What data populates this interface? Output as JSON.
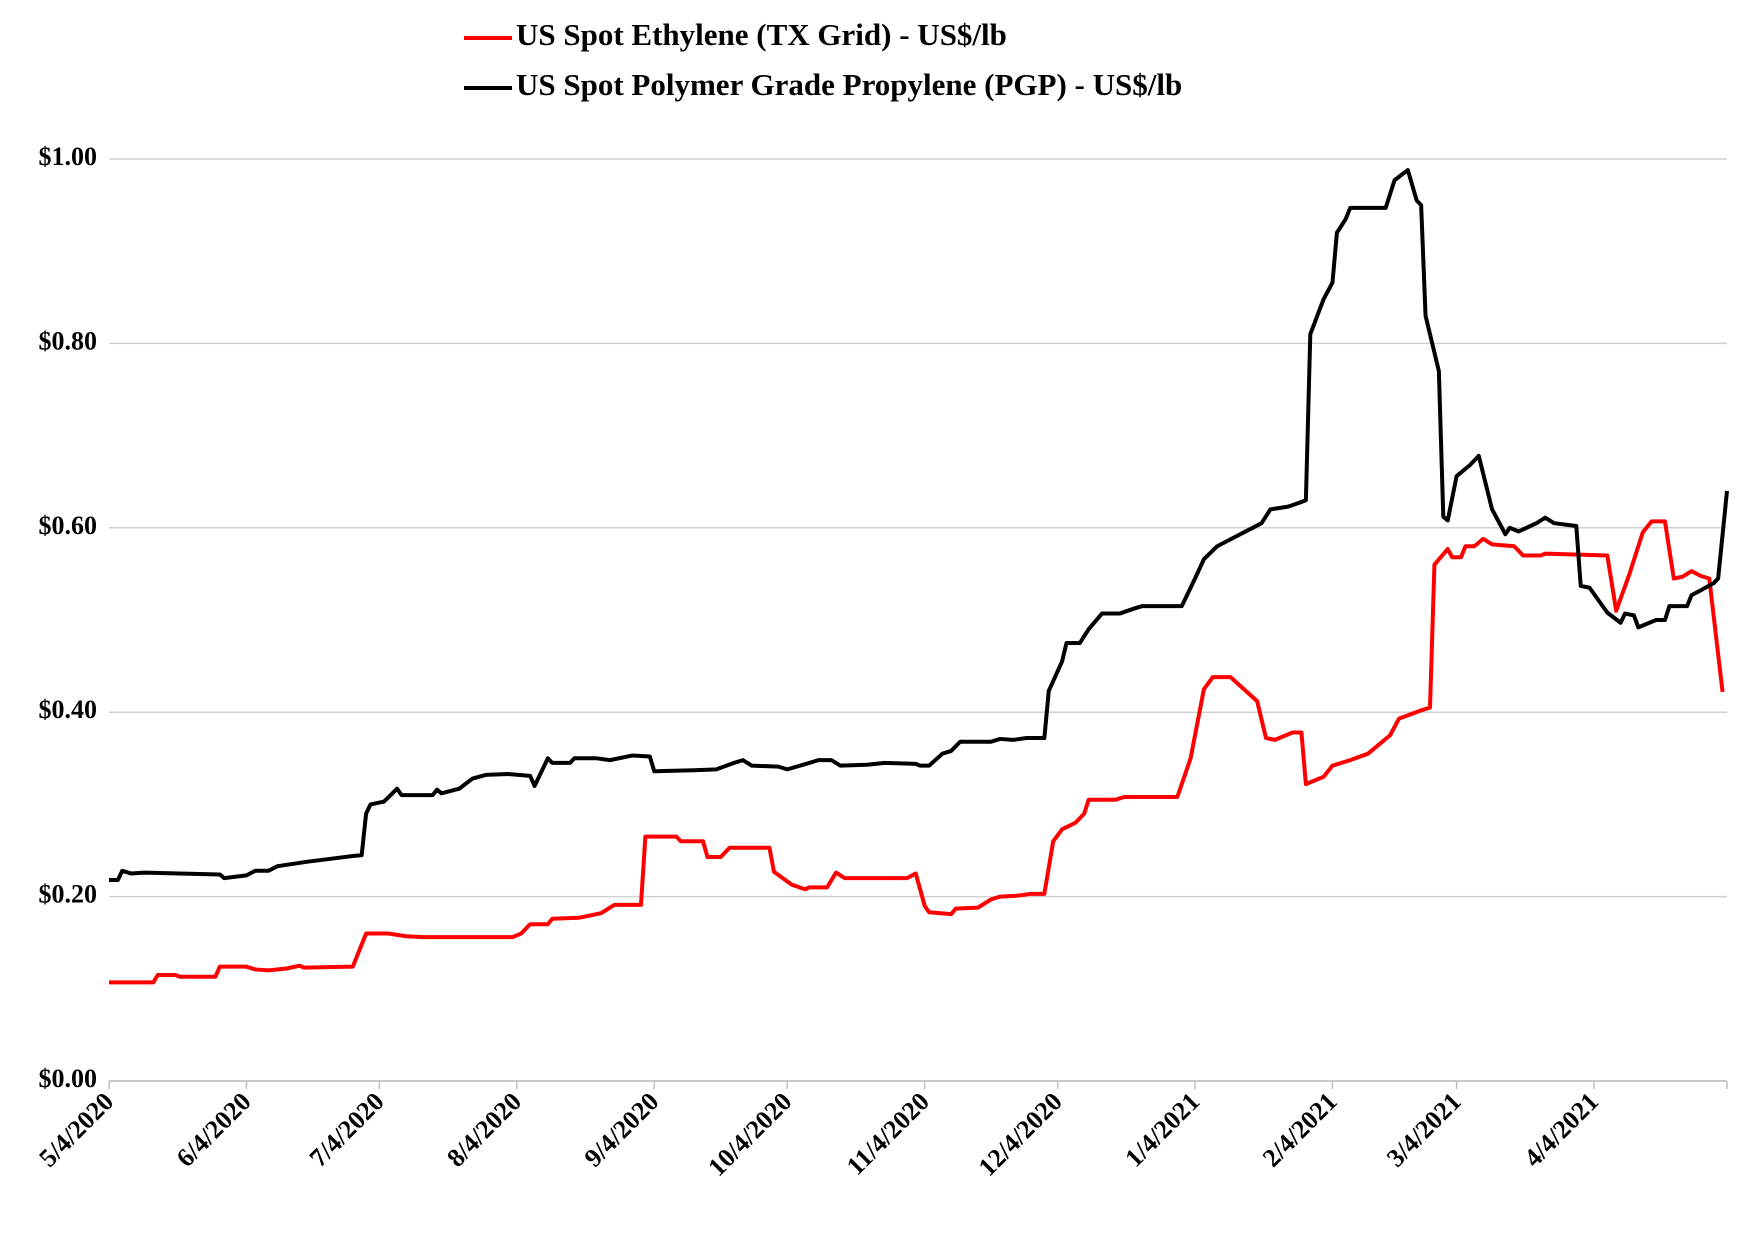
{
  "chart_data": {
    "type": "line",
    "series": [
      {
        "name": "US Spot Ethylene (TX Grid) - US$/lb",
        "color": "#ff0000",
        "x": [
          "2020-05-04",
          "2020-05-14",
          "2020-05-15",
          "2020-05-19",
          "2020-05-20",
          "2020-05-28",
          "2020-05-29",
          "2020-06-04",
          "2020-06-06",
          "2020-06-09",
          "2020-06-13",
          "2020-06-16",
          "2020-06-17",
          "2020-06-28",
          "2020-06-30",
          "2020-07-01",
          "2020-07-06",
          "2020-07-10",
          "2020-07-14",
          "2020-08-03",
          "2020-08-05",
          "2020-08-07",
          "2020-08-11",
          "2020-08-12",
          "2020-08-18",
          "2020-08-23",
          "2020-08-26",
          "2020-09-01",
          "2020-09-02",
          "2020-09-09",
          "2020-09-10",
          "2020-09-15",
          "2020-09-16",
          "2020-09-19",
          "2020-09-21",
          "2020-09-30",
          "2020-10-01",
          "2020-10-05",
          "2020-10-08",
          "2020-10-09",
          "2020-10-13",
          "2020-10-15",
          "2020-10-17",
          "2020-10-31",
          "2020-11-02",
          "2020-11-04",
          "2020-11-05",
          "2020-11-10",
          "2020-11-11",
          "2020-11-16",
          "2020-11-19",
          "2020-11-21",
          "2020-11-25",
          "2020-11-28",
          "2020-12-01",
          "2020-12-03",
          "2020-12-05",
          "2020-12-08",
          "2020-12-10",
          "2020-12-11",
          "2020-12-17",
          "2020-12-19",
          "2020-12-31",
          "2021-01-03",
          "2021-01-06",
          "2021-01-08",
          "2021-01-12",
          "2021-01-15",
          "2021-01-18",
          "2021-01-20",
          "2021-01-22",
          "2021-01-26",
          "2021-01-28",
          "2021-01-29",
          "2021-02-02",
          "2021-02-04",
          "2021-02-08",
          "2021-02-12",
          "2021-02-17",
          "2021-02-19",
          "2021-02-24",
          "2021-02-26",
          "2021-02-27",
          "2021-03-02",
          "2021-03-03",
          "2021-03-05",
          "2021-03-06",
          "2021-03-08",
          "2021-03-10",
          "2021-03-12",
          "2021-03-17",
          "2021-03-19",
          "2021-03-23",
          "2021-03-24",
          "2021-04-07",
          "2021-04-09",
          "2021-04-12",
          "2021-04-15",
          "2021-04-17",
          "2021-04-20",
          "2021-04-22",
          "2021-04-24",
          "2021-04-26",
          "2021-04-28",
          "2021-04-30",
          "2021-05-03"
        ],
        "values": [
          0.107,
          0.107,
          0.115,
          0.115,
          0.113,
          0.113,
          0.124,
          0.124,
          0.121,
          0.12,
          0.122,
          0.125,
          0.123,
          0.124,
          0.148,
          0.16,
          0.16,
          0.157,
          0.156,
          0.156,
          0.16,
          0.17,
          0.17,
          0.176,
          0.177,
          0.182,
          0.191,
          0.191,
          0.265,
          0.265,
          0.26,
          0.26,
          0.243,
          0.243,
          0.253,
          0.253,
          0.227,
          0.213,
          0.208,
          0.21,
          0.21,
          0.226,
          0.22,
          0.22,
          0.225,
          0.19,
          0.183,
          0.181,
          0.187,
          0.188,
          0.197,
          0.2,
          0.201,
          0.203,
          0.203,
          0.26,
          0.273,
          0.28,
          0.29,
          0.305,
          0.305,
          0.308,
          0.308,
          0.35,
          0.425,
          0.438,
          0.438,
          0.425,
          0.412,
          0.372,
          0.37,
          0.378,
          0.378,
          0.322,
          0.33,
          0.342,
          0.348,
          0.355,
          0.375,
          0.393,
          0.402,
          0.405,
          0.56,
          0.577,
          0.568,
          0.568,
          0.58,
          0.58,
          0.588,
          0.582,
          0.58,
          0.57,
          0.57,
          0.572,
          0.57,
          0.51,
          0.55,
          0.595,
          0.607,
          0.607,
          0.545,
          0.547,
          0.553,
          0.548,
          0.545,
          0.422
        ]
      },
      {
        "name": "US Spot Polymer Grade Propylene (PGP) - US$/lb",
        "color": "#000000",
        "x": [
          "2020-05-04",
          "2020-05-06",
          "2020-05-07",
          "2020-05-09",
          "2020-05-12",
          "2020-05-29",
          "2020-05-30",
          "2020-06-04",
          "2020-06-06",
          "2020-06-09",
          "2020-06-11",
          "2020-06-18",
          "2020-06-23",
          "2020-06-28",
          "2020-06-30",
          "2020-07-01",
          "2020-07-02",
          "2020-07-05",
          "2020-07-08",
          "2020-07-09",
          "2020-07-16",
          "2020-07-17",
          "2020-07-18",
          "2020-07-22",
          "2020-07-25",
          "2020-07-28",
          "2020-08-02",
          "2020-08-07",
          "2020-08-08",
          "2020-08-11",
          "2020-08-12",
          "2020-08-16",
          "2020-08-17",
          "2020-08-22",
          "2020-08-25",
          "2020-08-30",
          "2020-09-03",
          "2020-09-04",
          "2020-09-13",
          "2020-09-18",
          "2020-09-22",
          "2020-09-24",
          "2020-09-26",
          "2020-10-02",
          "2020-10-04",
          "2020-10-09",
          "2020-10-11",
          "2020-10-14",
          "2020-10-16",
          "2020-10-22",
          "2020-10-26",
          "2020-11-02",
          "2020-11-03",
          "2020-11-05",
          "2020-11-08",
          "2020-11-10",
          "2020-11-12",
          "2020-11-19",
          "2020-11-21",
          "2020-11-24",
          "2020-11-27",
          "2020-12-01",
          "2020-12-02",
          "2020-12-05",
          "2020-12-06",
          "2020-12-09",
          "2020-12-11",
          "2020-12-14",
          "2020-12-18",
          "2020-12-21",
          "2020-12-23",
          "2021-01-01",
          "2021-01-04",
          "2021-01-06",
          "2021-01-09",
          "2021-01-13",
          "2021-01-17",
          "2021-01-19",
          "2021-01-21",
          "2021-01-25",
          "2021-01-28",
          "2021-01-29",
          "2021-01-30",
          "2021-02-02",
          "2021-02-04",
          "2021-02-05",
          "2021-02-07",
          "2021-02-08",
          "2021-02-16",
          "2021-02-18",
          "2021-02-21",
          "2021-02-23",
          "2021-02-24",
          "2021-02-25",
          "2021-02-28",
          "2021-03-01",
          "2021-03-02",
          "2021-03-04",
          "2021-03-07",
          "2021-03-09",
          "2021-03-12",
          "2021-03-15",
          "2021-03-16",
          "2021-03-18",
          "2021-03-22",
          "2021-03-24",
          "2021-03-26",
          "2021-03-31",
          "2021-04-01",
          "2021-04-03",
          "2021-04-07",
          "2021-04-10",
          "2021-04-11",
          "2021-04-13",
          "2021-04-14",
          "2021-04-18",
          "2021-04-20",
          "2021-04-21",
          "2021-04-25",
          "2021-04-26",
          "2021-04-28",
          "2021-05-01",
          "2021-05-02",
          "2021-05-04"
        ],
        "values": [
          0.218,
          0.218,
          0.228,
          0.225,
          0.226,
          0.224,
          0.22,
          0.223,
          0.228,
          0.228,
          0.233,
          0.238,
          0.241,
          0.244,
          0.245,
          0.29,
          0.3,
          0.303,
          0.317,
          0.31,
          0.31,
          0.316,
          0.312,
          0.317,
          0.328,
          0.332,
          0.333,
          0.331,
          0.32,
          0.35,
          0.345,
          0.345,
          0.35,
          0.35,
          0.348,
          0.353,
          0.352,
          0.336,
          0.337,
          0.338,
          0.345,
          0.348,
          0.342,
          0.341,
          0.338,
          0.345,
          0.348,
          0.348,
          0.342,
          0.343,
          0.345,
          0.344,
          0.342,
          0.342,
          0.355,
          0.358,
          0.368,
          0.368,
          0.371,
          0.37,
          0.372,
          0.372,
          0.423,
          0.455,
          0.475,
          0.475,
          0.49,
          0.507,
          0.507,
          0.512,
          0.515,
          0.515,
          0.545,
          0.566,
          0.58,
          0.59,
          0.6,
          0.605,
          0.62,
          0.623,
          0.628,
          0.63,
          0.81,
          0.848,
          0.866,
          0.92,
          0.935,
          0.947,
          0.947,
          0.977,
          0.988,
          0.955,
          0.95,
          0.83,
          0.77,
          0.612,
          0.608,
          0.656,
          0.668,
          0.678,
          0.62,
          0.593,
          0.6,
          0.596,
          0.605,
          0.611,
          0.605,
          0.602,
          0.537,
          0.535,
          0.508,
          0.497,
          0.507,
          0.505,
          0.492,
          0.5,
          0.5,
          0.515,
          0.515,
          0.527,
          0.532,
          0.54,
          0.545,
          0.64
        ]
      }
    ],
    "xlim": [
      "2020-05-04",
      "2021-05-04"
    ],
    "xticks": [
      {
        "value": "2020-05-04",
        "label": "5/4/2020"
      },
      {
        "value": "2020-06-04",
        "label": "6/4/2020"
      },
      {
        "value": "2020-07-04",
        "label": "7/4/2020"
      },
      {
        "value": "2020-08-04",
        "label": "8/4/2020"
      },
      {
        "value": "2020-09-04",
        "label": "9/4/2020"
      },
      {
        "value": "2020-10-04",
        "label": "10/4/2020"
      },
      {
        "value": "2020-11-04",
        "label": "11/4/2020"
      },
      {
        "value": "2020-12-04",
        "label": "12/4/2020"
      },
      {
        "value": "2021-01-04",
        "label": "1/4/2021"
      },
      {
        "value": "2021-02-04",
        "label": "2/4/2021"
      },
      {
        "value": "2021-03-04",
        "label": "3/4/2021"
      },
      {
        "value": "2021-04-04",
        "label": "4/4/2021"
      }
    ],
    "ylim": [
      0,
      1
    ],
    "yticks": [
      {
        "value": 0,
        "label": "$0.00"
      },
      {
        "value": 0.2,
        "label": "$0.20"
      },
      {
        "value": 0.4,
        "label": "$0.40"
      },
      {
        "value": 0.6,
        "label": "$0.60"
      },
      {
        "value": 0.8,
        "label": "$0.80"
      },
      {
        "value": 1,
        "label": "$1.00"
      }
    ],
    "grid": true,
    "legend": "top"
  }
}
